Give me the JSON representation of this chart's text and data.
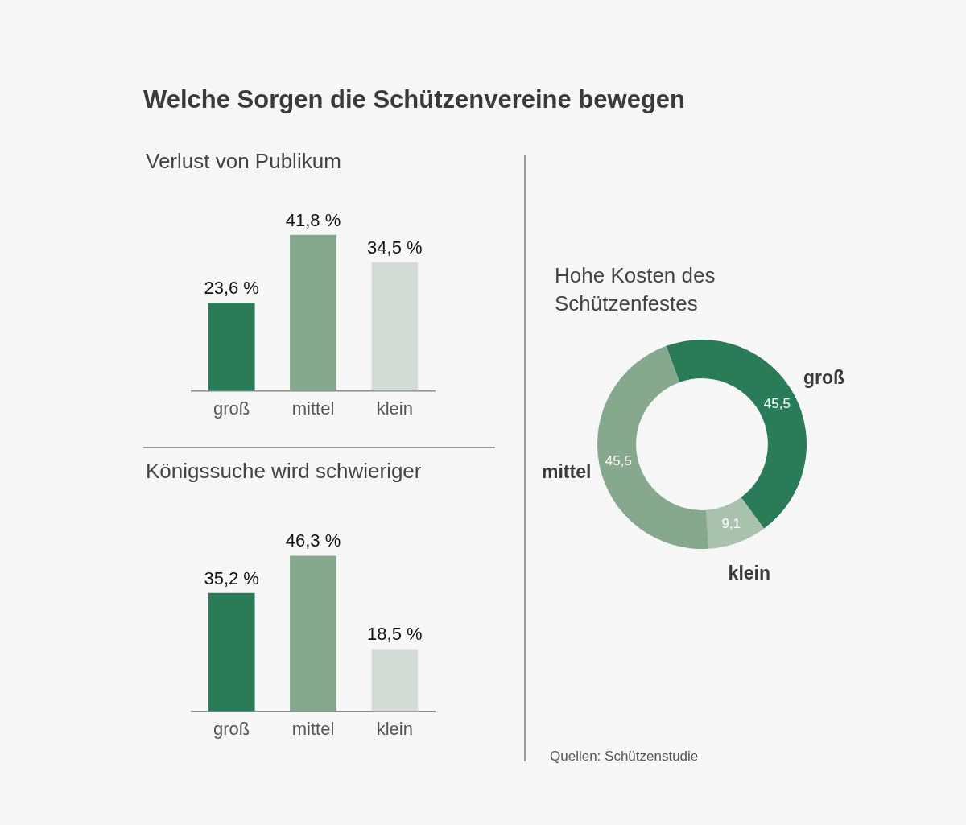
{
  "chart_data": [
    {
      "type": "bar",
      "title": "Welche Sorgen die Schützenvereine bewegen",
      "subtitle": "Verlust von Publikum",
      "categories": [
        "groß",
        "mittel",
        "klein"
      ],
      "values": [
        23.6,
        41.8,
        34.5
      ],
      "colors": [
        "#2a7b58",
        "#86a98e",
        "#d3dcd5"
      ],
      "data_labels": true,
      "value_labels": [
        "23,6 %",
        "41,8 %",
        "34,5 %"
      ],
      "tick_labels": "x",
      "grid": false,
      "legend": false
    },
    {
      "type": "bar",
      "title": "Königssuche wird schwieriger",
      "categories": [
        "groß",
        "mittel",
        "klein"
      ],
      "values": [
        35.2,
        46.3,
        18.5
      ],
      "colors": [
        "#2a7b58",
        "#86a98e",
        "#d3dcd5"
      ],
      "data_labels": true,
      "value_labels": [
        "35,2 %",
        "46,3 %",
        "18,5 %"
      ],
      "tick_labels": "x",
      "grid": false,
      "legend": false
    },
    {
      "type": "donut",
      "title": "Hohe Kosten des Schützenfestes",
      "categories": [
        "groß",
        "klein",
        "mittel"
      ],
      "values": [
        45.5,
        9.1,
        45.5
      ],
      "colors": [
        "#2a7b58",
        "#a9c2ae",
        "#86a98e"
      ],
      "data_labels": true,
      "value_labels": [
        "45,5",
        "9,1",
        "45,5"
      ],
      "legend": false,
      "annotations": [
        "Quellen: Schützenstudie"
      ]
    }
  ]
}
